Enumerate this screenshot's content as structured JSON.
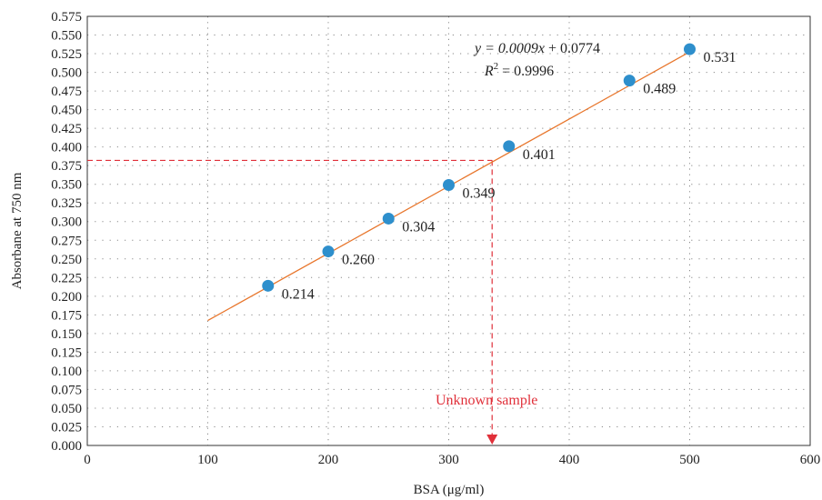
{
  "chart_data": {
    "type": "scatter",
    "xlabel": "BSA (μg/ml)",
    "ylabel": "Absorbane at 750 nm",
    "xlim": [
      0,
      600
    ],
    "ylim": [
      0,
      0.575
    ],
    "x_ticks": [
      "0",
      "100",
      "200",
      "300",
      "400",
      "500",
      "600"
    ],
    "y_ticks": [
      "0.000",
      "0.025",
      "0.050",
      "0.075",
      "0.100",
      "0.125",
      "0.150",
      "0.175",
      "0.200",
      "0.225",
      "0.250",
      "0.275",
      "0.300",
      "0.325",
      "0.350",
      "0.375",
      "0.400",
      "0.425",
      "0.450",
      "0.475",
      "0.500",
      "0.525",
      "0.550",
      "0.575"
    ],
    "grid": true,
    "series": [
      {
        "x": [
          150,
          200,
          250,
          300,
          350,
          450,
          500
        ],
        "y": [
          0.214,
          0.26,
          0.304,
          0.349,
          0.401,
          0.489,
          0.531
        ],
        "labels": [
          "0.214",
          "0.260",
          "0.304",
          "0.349",
          "0.401",
          "0.489",
          "0.531"
        ],
        "color": "#2e8fcc"
      }
    ],
    "trendline": {
      "x_start": 100,
      "x_end": 500,
      "slope": 0.0009,
      "intercept": 0.0774,
      "color": "#e8762c",
      "equation_prefix": "y = 0.0009",
      "equation_var": "x",
      "equation_suffix": " + 0.0774",
      "r2_prefix": "R",
      "r2_sup": "2",
      "r2_suffix": " = 0.9996"
    },
    "annotation": {
      "text": "Unknown sample",
      "color": "#e0303a",
      "x": 336,
      "y": 0.382
    }
  }
}
